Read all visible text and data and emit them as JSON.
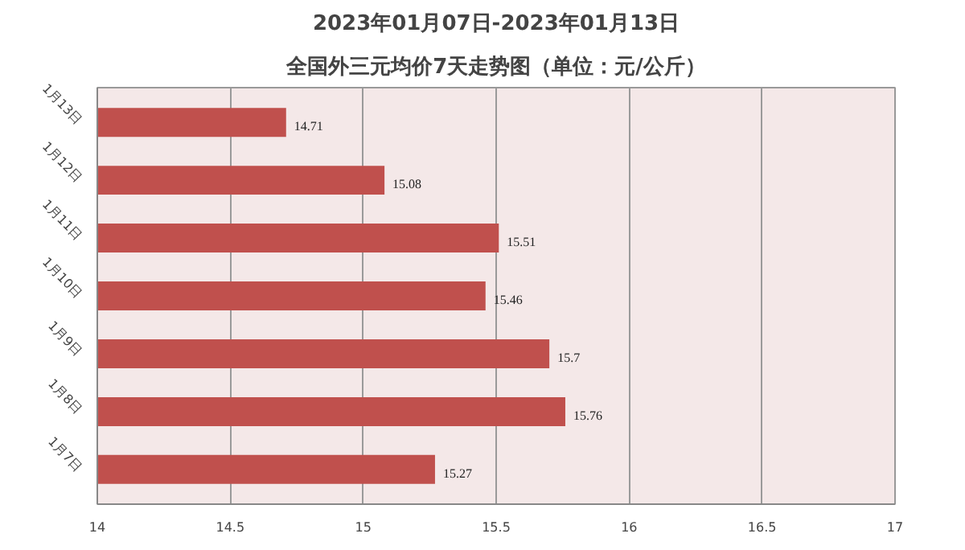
{
  "chart_data": {
    "type": "bar",
    "orientation": "horizontal",
    "title": "2023年01月07日-2023年01月13日",
    "subtitle": "全国外三元均价7天走势图（单位：元/公斤）",
    "categories": [
      "1月13日",
      "1月12日",
      "1月11日",
      "1月10日",
      "1月9日",
      "1月8日",
      "1月7日"
    ],
    "values": [
      14.71,
      15.08,
      15.51,
      15.46,
      15.7,
      15.76,
      15.27
    ],
    "color": "#c0504d",
    "xlim": [
      14,
      17
    ],
    "xticks": [
      14,
      14.5,
      15,
      15.5,
      16,
      16.5,
      17
    ],
    "grid": "x",
    "data_labels": true
  }
}
